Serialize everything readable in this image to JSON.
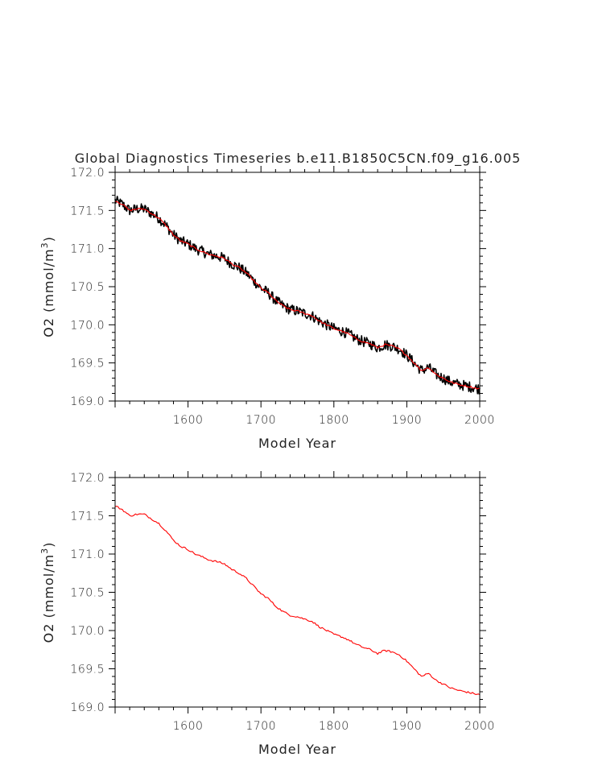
{
  "title": "Global Diagnostics Timeseries b.e11.B1850C5CN.f09_g16.005",
  "colors": {
    "raw": "#000000",
    "smooth": "#ff0000",
    "frame": "#000000"
  },
  "chart_data": [
    {
      "type": "line",
      "xlabel": "Model Year",
      "ylabel": "O2 (mmol/m",
      "ylabel_sup": "3",
      "ylabel_close": ")",
      "xlim": [
        1500,
        2000
      ],
      "ylim": [
        169.0,
        172.0
      ],
      "xticks": [
        "1600",
        "1700",
        "1800",
        "1900",
        "2000"
      ],
      "yticks": [
        "169.0",
        "169.5",
        "170.0",
        "170.5",
        "171.0",
        "171.5",
        "172.0"
      ],
      "series": [
        {
          "style": "raw-annual-band",
          "band_halfwidth": 0.07,
          "x": [
            1500,
            1510,
            1520,
            1530,
            1540,
            1550,
            1560,
            1570,
            1580,
            1590,
            1600,
            1610,
            1620,
            1630,
            1640,
            1650,
            1660,
            1670,
            1680,
            1690,
            1700,
            1710,
            1720,
            1730,
            1740,
            1750,
            1760,
            1770,
            1780,
            1790,
            1800,
            1810,
            1820,
            1830,
            1840,
            1850,
            1860,
            1870,
            1880,
            1890,
            1900,
            1910,
            1920,
            1930,
            1940,
            1950,
            1960,
            1970,
            1980,
            1990,
            2000
          ],
          "y": [
            171.63,
            171.58,
            171.5,
            171.52,
            171.52,
            171.46,
            171.4,
            171.3,
            171.18,
            171.1,
            171.06,
            171.0,
            170.96,
            170.92,
            170.9,
            170.87,
            170.8,
            170.75,
            170.68,
            170.58,
            170.48,
            170.42,
            170.32,
            170.25,
            170.2,
            170.18,
            170.15,
            170.12,
            170.05,
            170.0,
            169.95,
            169.92,
            169.88,
            169.82,
            169.78,
            169.75,
            169.7,
            169.74,
            169.72,
            169.68,
            169.6,
            169.5,
            169.4,
            169.44,
            169.35,
            169.3,
            169.25,
            169.22,
            169.2,
            169.18,
            169.16
          ]
        },
        {
          "style": "smoothed",
          "x": [
            1500,
            1510,
            1520,
            1530,
            1540,
            1550,
            1560,
            1570,
            1580,
            1590,
            1600,
            1610,
            1620,
            1630,
            1640,
            1650,
            1660,
            1670,
            1680,
            1690,
            1700,
            1710,
            1720,
            1730,
            1740,
            1750,
            1760,
            1770,
            1780,
            1790,
            1800,
            1810,
            1820,
            1830,
            1840,
            1850,
            1860,
            1870,
            1880,
            1890,
            1900,
            1910,
            1920,
            1930,
            1940,
            1950,
            1960,
            1970,
            1980,
            1990,
            2000
          ],
          "y": [
            171.63,
            171.58,
            171.5,
            171.52,
            171.52,
            171.46,
            171.4,
            171.3,
            171.18,
            171.1,
            171.06,
            171.0,
            170.96,
            170.92,
            170.9,
            170.87,
            170.8,
            170.75,
            170.68,
            170.58,
            170.48,
            170.42,
            170.32,
            170.25,
            170.2,
            170.18,
            170.15,
            170.12,
            170.05,
            170.0,
            169.95,
            169.92,
            169.88,
            169.82,
            169.78,
            169.75,
            169.7,
            169.74,
            169.72,
            169.68,
            169.6,
            169.5,
            169.4,
            169.44,
            169.35,
            169.3,
            169.25,
            169.22,
            169.2,
            169.18,
            169.16
          ]
        }
      ]
    },
    {
      "type": "line",
      "xlabel": "Model Year",
      "ylabel": "O2 (mmol/m",
      "ylabel_sup": "3",
      "ylabel_close": ")",
      "xlim": [
        1500,
        2000
      ],
      "ylim": [
        169.0,
        172.0
      ],
      "xticks": [
        "1600",
        "1700",
        "1800",
        "1900",
        "2000"
      ],
      "yticks": [
        "169.0",
        "169.5",
        "170.0",
        "170.5",
        "171.0",
        "171.5",
        "172.0"
      ],
      "series": [
        {
          "style": "smoothed",
          "x": [
            1500,
            1510,
            1520,
            1530,
            1540,
            1550,
            1560,
            1570,
            1580,
            1590,
            1600,
            1610,
            1620,
            1630,
            1640,
            1650,
            1660,
            1670,
            1680,
            1690,
            1700,
            1710,
            1720,
            1730,
            1740,
            1750,
            1760,
            1770,
            1780,
            1790,
            1800,
            1810,
            1820,
            1830,
            1840,
            1850,
            1860,
            1870,
            1880,
            1890,
            1900,
            1910,
            1920,
            1930,
            1940,
            1950,
            1960,
            1970,
            1980,
            1990,
            2000
          ],
          "y": [
            171.63,
            171.58,
            171.5,
            171.52,
            171.52,
            171.46,
            171.4,
            171.3,
            171.18,
            171.1,
            171.06,
            171.0,
            170.96,
            170.92,
            170.9,
            170.87,
            170.8,
            170.75,
            170.68,
            170.58,
            170.48,
            170.42,
            170.32,
            170.25,
            170.2,
            170.18,
            170.15,
            170.12,
            170.05,
            170.0,
            169.95,
            169.92,
            169.88,
            169.82,
            169.78,
            169.75,
            169.7,
            169.74,
            169.72,
            169.68,
            169.6,
            169.5,
            169.4,
            169.44,
            169.35,
            169.3,
            169.25,
            169.22,
            169.2,
            169.18,
            169.16
          ]
        }
      ]
    }
  ]
}
